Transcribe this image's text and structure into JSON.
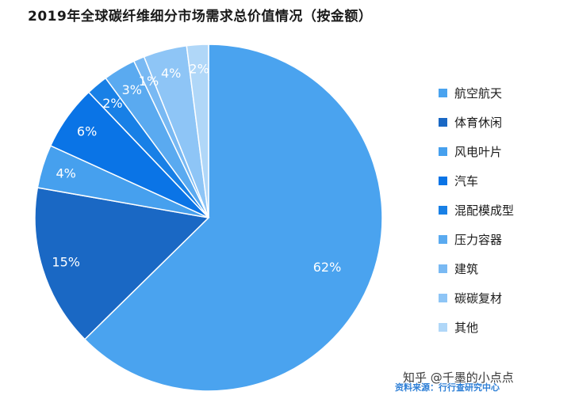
{
  "chart_data": {
    "type": "pie",
    "title": "2019年全球碳纤维细分市场需求总价值情况（按金额）",
    "categories": [
      "航空航天",
      "体育休闲",
      "风电叶片",
      "汽车",
      "混配模成型",
      "压力容器",
      "建筑",
      "碳碳复材",
      "其他"
    ],
    "values": [
      62,
      15,
      4,
      6,
      2,
      3,
      1,
      4,
      2
    ],
    "value_labels": [
      "62%",
      "15%",
      "4%",
      "6%",
      "2%",
      "3%",
      "1%",
      "4%",
      "2%"
    ],
    "slice_order": [
      0,
      1,
      2,
      3,
      4,
      5,
      6,
      7,
      8
    ],
    "start_angle": "12 o'clock",
    "direction": "clockwise",
    "legend_position": "right",
    "colors": [
      "#4aa3ef",
      "#1a68c4",
      "#46a0ee",
      "#0a74e6",
      "#1880e6",
      "#5aaaf0",
      "#79b9f3",
      "#8ec5f6",
      "#b0d7f8"
    ]
  },
  "watermark": "知乎 @千墨的小点点",
  "source": "资料来源：行行查研究中心"
}
